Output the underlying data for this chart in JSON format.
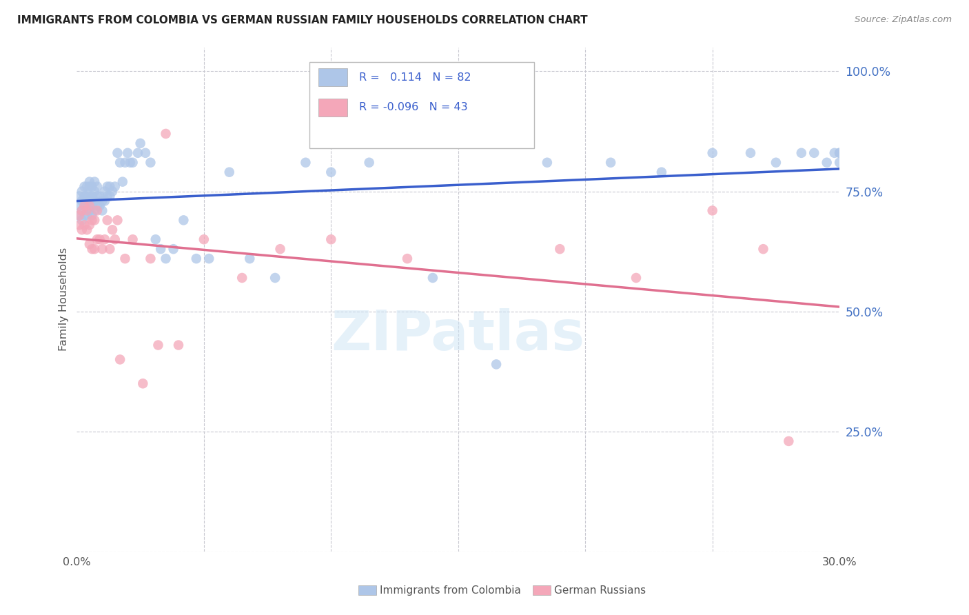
{
  "title": "IMMIGRANTS FROM COLOMBIA VS GERMAN RUSSIAN FAMILY HOUSEHOLDS CORRELATION CHART",
  "source": "Source: ZipAtlas.com",
  "ylabel": "Family Households",
  "ytick_positions": [
    0.0,
    0.25,
    0.5,
    0.75,
    1.0
  ],
  "ytick_labels": [
    "",
    "25.0%",
    "50.0%",
    "75.0%",
    "100.0%"
  ],
  "xmin": 0.0,
  "xmax": 0.3,
  "ymin": 0.0,
  "ymax": 1.05,
  "colombia_r": 0.114,
  "colombia_n": 82,
  "german_r": -0.096,
  "german_n": 43,
  "colombia_color": "#aec6e8",
  "german_color": "#f4a7b9",
  "colombia_line_color": "#3a5fcd",
  "german_line_color": "#e07090",
  "colombia_x": [
    0.001,
    0.001,
    0.001,
    0.002,
    0.002,
    0.002,
    0.002,
    0.003,
    0.003,
    0.003,
    0.003,
    0.004,
    0.004,
    0.004,
    0.004,
    0.005,
    0.005,
    0.005,
    0.005,
    0.005,
    0.006,
    0.006,
    0.006,
    0.006,
    0.007,
    0.007,
    0.007,
    0.007,
    0.008,
    0.008,
    0.008,
    0.009,
    0.009,
    0.01,
    0.01,
    0.011,
    0.011,
    0.012,
    0.012,
    0.013,
    0.013,
    0.014,
    0.015,
    0.016,
    0.017,
    0.018,
    0.019,
    0.02,
    0.021,
    0.022,
    0.024,
    0.025,
    0.027,
    0.029,
    0.031,
    0.033,
    0.035,
    0.038,
    0.042,
    0.047,
    0.052,
    0.06,
    0.068,
    0.078,
    0.09,
    0.1,
    0.115,
    0.14,
    0.165,
    0.185,
    0.21,
    0.23,
    0.25,
    0.265,
    0.275,
    0.285,
    0.29,
    0.295,
    0.298,
    0.3,
    0.3,
    0.3
  ],
  "colombia_y": [
    0.7,
    0.72,
    0.74,
    0.69,
    0.71,
    0.73,
    0.75,
    0.7,
    0.72,
    0.74,
    0.76,
    0.7,
    0.72,
    0.74,
    0.76,
    0.71,
    0.73,
    0.74,
    0.76,
    0.77,
    0.7,
    0.72,
    0.74,
    0.76,
    0.71,
    0.73,
    0.75,
    0.77,
    0.72,
    0.74,
    0.76,
    0.72,
    0.74,
    0.71,
    0.73,
    0.73,
    0.75,
    0.74,
    0.76,
    0.74,
    0.76,
    0.75,
    0.76,
    0.83,
    0.81,
    0.77,
    0.81,
    0.83,
    0.81,
    0.81,
    0.83,
    0.85,
    0.83,
    0.81,
    0.65,
    0.63,
    0.61,
    0.63,
    0.69,
    0.61,
    0.61,
    0.79,
    0.61,
    0.57,
    0.81,
    0.79,
    0.81,
    0.57,
    0.39,
    0.81,
    0.81,
    0.79,
    0.83,
    0.83,
    0.81,
    0.83,
    0.83,
    0.81,
    0.83,
    0.83,
    0.81,
    0.83
  ],
  "german_x": [
    0.001,
    0.001,
    0.002,
    0.002,
    0.003,
    0.003,
    0.004,
    0.004,
    0.005,
    0.005,
    0.005,
    0.006,
    0.006,
    0.007,
    0.007,
    0.008,
    0.008,
    0.009,
    0.01,
    0.011,
    0.012,
    0.013,
    0.014,
    0.015,
    0.016,
    0.017,
    0.019,
    0.022,
    0.026,
    0.029,
    0.032,
    0.035,
    0.04,
    0.05,
    0.065,
    0.08,
    0.1,
    0.13,
    0.19,
    0.22,
    0.25,
    0.27,
    0.28
  ],
  "german_y": [
    0.68,
    0.7,
    0.67,
    0.71,
    0.68,
    0.72,
    0.67,
    0.71,
    0.64,
    0.68,
    0.72,
    0.63,
    0.69,
    0.63,
    0.69,
    0.65,
    0.71,
    0.65,
    0.63,
    0.65,
    0.69,
    0.63,
    0.67,
    0.65,
    0.69,
    0.4,
    0.61,
    0.65,
    0.35,
    0.61,
    0.43,
    0.87,
    0.43,
    0.65,
    0.57,
    0.63,
    0.65,
    0.61,
    0.63,
    0.57,
    0.71,
    0.63,
    0.23
  ],
  "watermark": "ZIPatlas",
  "background_color": "#ffffff",
  "grid_color": "#c8c8d0"
}
